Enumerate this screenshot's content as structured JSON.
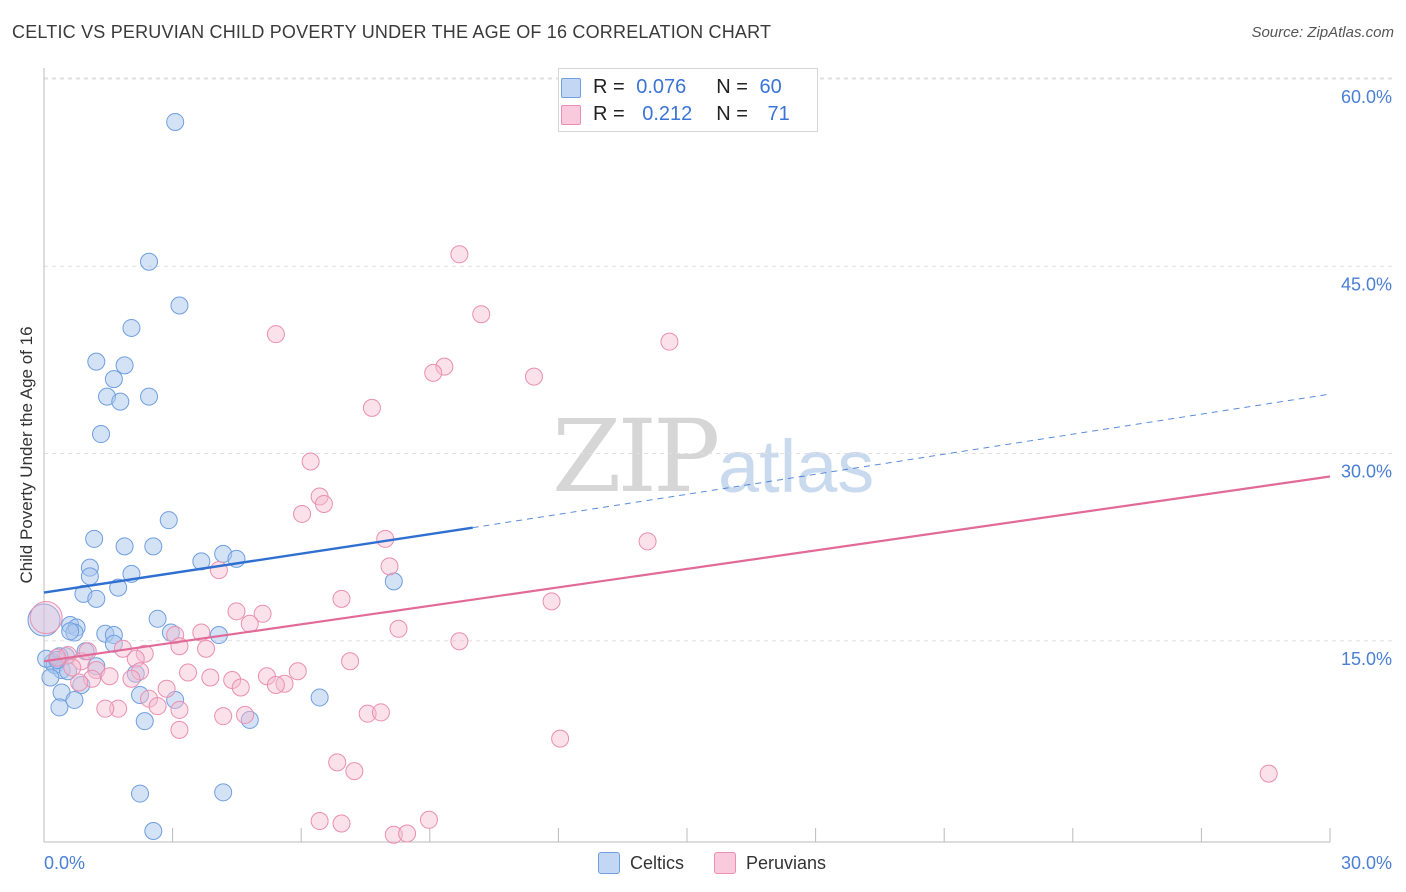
{
  "title": "CELTIC VS PERUVIAN CHILD POVERTY UNDER THE AGE OF 16 CORRELATION CHART",
  "source": "Source: ZipAtlas.com",
  "watermark": {
    "zip": "ZIP",
    "atlas": "atlas"
  },
  "colors": {
    "celtic_fill": "#a9c6ee",
    "celtic_stroke": "#6f9fdf",
    "celtic_line": "#2f6fd0",
    "peruvian_fill": "#f5bdd0",
    "peruvian_stroke": "#ea8fb0",
    "peruvian_line": "#e26a98",
    "axis_text": "#4a7fd4",
    "grid": "#e0e0e0"
  },
  "legend": {
    "rows": [
      {
        "r_label": "R = ",
        "r_value": "0.076",
        "n_label": "N = ",
        "n_value": "60"
      },
      {
        "r_label": "R = ",
        "r_value": "0.212",
        "n_label": "N = ",
        "n_value": "71"
      }
    ]
  },
  "bottom_legend": [
    "Celtics",
    "Peruvians"
  ],
  "chart_data": {
    "type": "scatter",
    "title": "CELTIC VS PERUVIAN CHILD POVERTY UNDER THE AGE OF 16 CORRELATION CHART",
    "xlabel": "",
    "ylabel": "Child Poverty Under the Age of 16",
    "xlim": [
      0,
      30
    ],
    "ylim": [
      0,
      60
    ],
    "x_tick_labels": [
      "0.0%",
      "30.0%"
    ],
    "y_tick_labels": [
      "15.0%",
      "30.0%",
      "45.0%",
      "60.0%"
    ],
    "y_ticks": [
      15,
      30,
      45,
      60
    ],
    "series": [
      {
        "name": "Celtics",
        "r": 0.076,
        "n": 60,
        "trend": {
          "x0": 0,
          "y0": 20.3,
          "x1": 10,
          "y1": 25.5,
          "dash_to_x": 30,
          "dash_to_y": 36.2
        },
        "points": [
          [
            3.06,
            58.0
          ],
          [
            2.45,
            46.8
          ],
          [
            3.16,
            43.3
          ],
          [
            2.04,
            41.5
          ],
          [
            1.22,
            38.8
          ],
          [
            1.88,
            38.5
          ],
          [
            1.63,
            37.4
          ],
          [
            1.47,
            36.0
          ],
          [
            1.78,
            35.6
          ],
          [
            2.45,
            36.0
          ],
          [
            1.33,
            33.0
          ],
          [
            2.91,
            26.1
          ],
          [
            1.17,
            24.6
          ],
          [
            1.88,
            24.0
          ],
          [
            2.55,
            24.0
          ],
          [
            4.18,
            23.4
          ],
          [
            4.49,
            23.0
          ],
          [
            3.67,
            22.8
          ],
          [
            1.07,
            22.3
          ],
          [
            2.04,
            21.8
          ],
          [
            1.07,
            21.6
          ],
          [
            8.16,
            21.2
          ],
          [
            1.73,
            20.7
          ],
          [
            0.92,
            20.2
          ],
          [
            1.22,
            19.8
          ],
          [
            0.0,
            18.1
          ],
          [
            2.65,
            18.2
          ],
          [
            0.61,
            17.7
          ],
          [
            0.76,
            17.5
          ],
          [
            0.71,
            17.1
          ],
          [
            0.61,
            17.2
          ],
          [
            2.96,
            17.1
          ],
          [
            4.08,
            16.9
          ],
          [
            1.43,
            17.0
          ],
          [
            1.63,
            16.9
          ],
          [
            1.63,
            16.2
          ],
          [
            0.97,
            15.6
          ],
          [
            0.51,
            15.2
          ],
          [
            0.36,
            15.2
          ],
          [
            0.2,
            14.7
          ],
          [
            0.25,
            14.5
          ],
          [
            0.41,
            14.1
          ],
          [
            1.22,
            14.4
          ],
          [
            0.56,
            14.0
          ],
          [
            0.15,
            13.5
          ],
          [
            2.14,
            13.8
          ],
          [
            0.87,
            12.9
          ],
          [
            0.41,
            12.3
          ],
          [
            2.24,
            12.1
          ],
          [
            3.06,
            11.7
          ],
          [
            6.43,
            11.9
          ],
          [
            0.71,
            11.7
          ],
          [
            0.36,
            11.1
          ],
          [
            2.35,
            10.0
          ],
          [
            4.8,
            10.1
          ],
          [
            2.24,
            4.2
          ],
          [
            4.18,
            4.3
          ],
          [
            2.55,
            1.2
          ],
          [
            0.05,
            15.0
          ],
          [
            0.31,
            14.9
          ]
        ]
      },
      {
        "name": "Peruvians",
        "r": 0.212,
        "n": 71,
        "trend": {
          "x0": 0,
          "y0": 14.8,
          "x1": 30,
          "y1": 29.6
        },
        "points": [
          [
            9.69,
            47.4
          ],
          [
            10.2,
            42.6
          ],
          [
            5.41,
            41.0
          ],
          [
            14.59,
            40.4
          ],
          [
            9.34,
            38.4
          ],
          [
            9.08,
            37.9
          ],
          [
            11.43,
            37.6
          ],
          [
            7.65,
            35.1
          ],
          [
            6.22,
            30.8
          ],
          [
            6.43,
            28.0
          ],
          [
            6.53,
            27.4
          ],
          [
            6.02,
            26.6
          ],
          [
            7.96,
            24.6
          ],
          [
            14.08,
            24.4
          ],
          [
            8.06,
            22.4
          ],
          [
            4.08,
            22.1
          ],
          [
            6.94,
            19.8
          ],
          [
            11.84,
            19.6
          ],
          [
            4.49,
            18.8
          ],
          [
            5.1,
            18.6
          ],
          [
            4.8,
            17.8
          ],
          [
            8.27,
            17.4
          ],
          [
            3.67,
            17.1
          ],
          [
            3.06,
            16.9
          ],
          [
            9.69,
            16.4
          ],
          [
            3.78,
            15.8
          ],
          [
            3.16,
            16.0
          ],
          [
            2.35,
            15.4
          ],
          [
            7.14,
            14.8
          ],
          [
            2.14,
            15.0
          ],
          [
            0.05,
            18.3
          ],
          [
            0.56,
            15.3
          ],
          [
            0.87,
            14.8
          ],
          [
            1.02,
            15.6
          ],
          [
            1.22,
            14.1
          ],
          [
            1.53,
            13.6
          ],
          [
            1.12,
            13.4
          ],
          [
            0.82,
            13.1
          ],
          [
            2.24,
            14.0
          ],
          [
            2.04,
            13.4
          ],
          [
            3.36,
            13.9
          ],
          [
            3.88,
            13.5
          ],
          [
            4.39,
            13.3
          ],
          [
            5.2,
            13.6
          ],
          [
            5.61,
            13.0
          ],
          [
            5.92,
            14.0
          ],
          [
            4.59,
            12.7
          ],
          [
            2.86,
            12.6
          ],
          [
            2.45,
            11.8
          ],
          [
            5.41,
            12.9
          ],
          [
            1.73,
            11.0
          ],
          [
            2.65,
            11.2
          ],
          [
            1.43,
            11.0
          ],
          [
            3.16,
            10.9
          ],
          [
            4.18,
            10.4
          ],
          [
            4.69,
            10.5
          ],
          [
            7.55,
            10.6
          ],
          [
            7.86,
            10.7
          ],
          [
            3.16,
            9.3
          ],
          [
            12.04,
            8.6
          ],
          [
            6.84,
            6.7
          ],
          [
            7.24,
            6.0
          ],
          [
            6.43,
            2.0
          ],
          [
            6.94,
            1.8
          ],
          [
            8.16,
            0.9
          ],
          [
            8.47,
            1.0
          ],
          [
            8.98,
            2.1
          ],
          [
            28.57,
            5.8
          ],
          [
            0.31,
            15.1
          ],
          [
            0.66,
            14.3
          ],
          [
            1.84,
            15.8
          ]
        ]
      }
    ]
  }
}
